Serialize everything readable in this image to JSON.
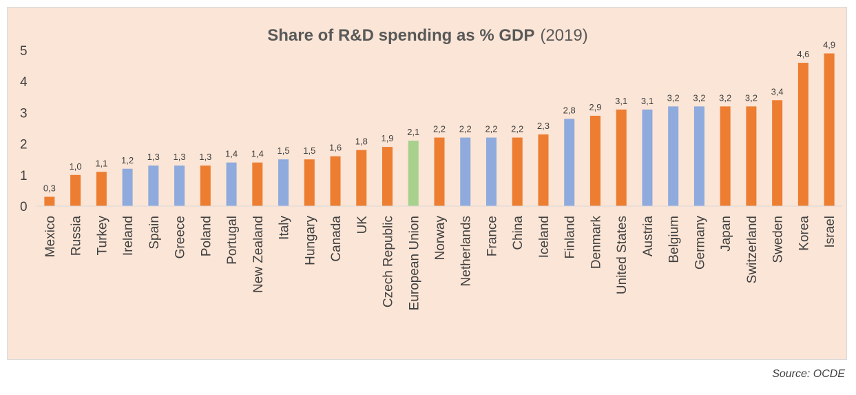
{
  "title": "Share of R&D spending as % GDP",
  "title_suffix": "(2019)",
  "source": "Source: OCDE",
  "colors": {
    "background": "#fbe5d6",
    "orange": "#ed7d31",
    "blue": "#8faadc",
    "green": "#a9d18e",
    "text": "#404040",
    "axis": "#d9d9d9"
  },
  "chart_data": {
    "type": "bar",
    "title": "Share of R&D spending as % GDP (2019)",
    "xlabel": "",
    "ylabel": "",
    "ylim": [
      0,
      5
    ],
    "yticks": [
      "0",
      "1",
      "2",
      "3",
      "4",
      "5"
    ],
    "grid": false,
    "categories": [
      "Mexico",
      "Russia",
      "Turkey",
      "Ireland",
      "Spain",
      "Greece",
      "Poland",
      "Portugal",
      "New Zealand",
      "Italy",
      "Hungary",
      "Canada",
      "UK",
      "Czech Republic",
      "European Union",
      "Norway",
      "Netherlands",
      "France",
      "China",
      "Iceland",
      "Finland",
      "Denmark",
      "United States",
      "Austria",
      "Belgium",
      "Germany",
      "Japan",
      "Switzerland",
      "Sweden",
      "Korea",
      "Israel"
    ],
    "values": [
      0.3,
      1.0,
      1.1,
      1.2,
      1.3,
      1.3,
      1.3,
      1.4,
      1.4,
      1.5,
      1.5,
      1.6,
      1.8,
      1.9,
      2.1,
      2.2,
      2.2,
      2.2,
      2.2,
      2.3,
      2.8,
      2.9,
      3.1,
      3.1,
      3.2,
      3.2,
      3.2,
      3.2,
      3.4,
      4.6,
      4.9
    ],
    "labels": [
      "0,3",
      "1,0",
      "1,1",
      "1,2",
      "1,3",
      "1,3",
      "1,3",
      "1,4",
      "1,4",
      "1,5",
      "1,5",
      "1,6",
      "1,8",
      "1,9",
      "2,1",
      "2,2",
      "2,2",
      "2,2",
      "2,2",
      "2,3",
      "2,8",
      "2,9",
      "3,1",
      "3,1",
      "3,2",
      "3,2",
      "3,2",
      "3,2",
      "3,4",
      "4,6",
      "4,9"
    ],
    "bar_colors": [
      "orange",
      "orange",
      "orange",
      "blue",
      "blue",
      "blue",
      "orange",
      "blue",
      "orange",
      "blue",
      "orange",
      "orange",
      "orange",
      "orange",
      "green",
      "orange",
      "blue",
      "blue",
      "orange",
      "orange",
      "blue",
      "orange",
      "orange",
      "blue",
      "blue",
      "blue",
      "orange",
      "orange",
      "orange",
      "orange",
      "orange"
    ]
  }
}
